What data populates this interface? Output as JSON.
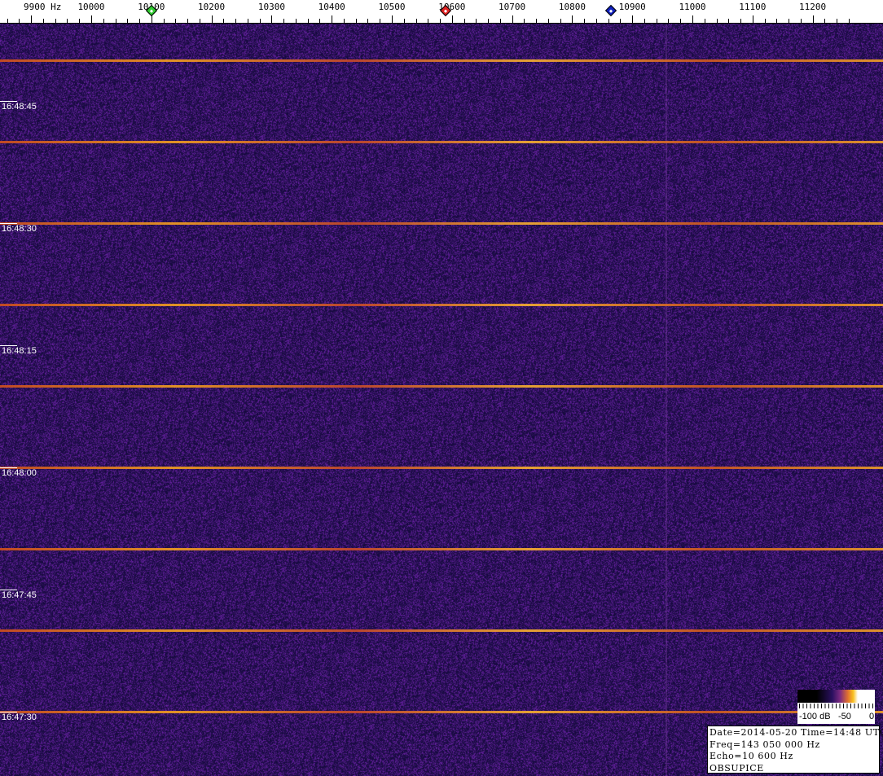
{
  "chart_data": {
    "type": "heatmap",
    "title": "",
    "x_unit_label": "Hz",
    "x_axis": {
      "range": [
        9850,
        11265
      ],
      "tick_labels": [
        "9900",
        "10000",
        "10100",
        "10200",
        "10300",
        "10400",
        "10500",
        "10600",
        "10700",
        "10800",
        "10900",
        "11000",
        "11100",
        "11200"
      ],
      "first_label_suffix": "Hz"
    },
    "y_axis": {
      "time_labels": [
        "16:48:45",
        "16:48:30",
        "16:48:15",
        "16:48:00",
        "16:47:45",
        "16:47:30"
      ],
      "top_time": "16:48:54.5",
      "direction": "time decreasing downward"
    },
    "markers": [
      {
        "name": "green",
        "freq": 10100,
        "color": "#2ecc2e"
      },
      {
        "name": "red",
        "freq": 10589,
        "color": "#e02020"
      },
      {
        "name": "blue",
        "freq": 10864,
        "color": "#1020c0"
      }
    ],
    "ping_times": [
      "16:48:50",
      "16:48:40",
      "16:48:30",
      "16:48:20",
      "16:48:10",
      "16:48:00",
      "16:47:50",
      "16:47:40",
      "16:47:30",
      "16:47:20"
    ],
    "faint_vertical_line_freq": 10955,
    "background_color": "#1e1458",
    "colorbar": {
      "labels": [
        "-100 dB",
        "-50",
        "0"
      ],
      "range_db": [
        -100,
        0
      ],
      "colormap": "black-purple-orange-white"
    }
  },
  "info": {
    "line1": "Date=2014-05-20 Time=14:48 UTC",
    "line2": "Freq=143 050 000 Hz",
    "line3": "Echo=10 600 Hz",
    "line4": "OBSUPICE"
  }
}
